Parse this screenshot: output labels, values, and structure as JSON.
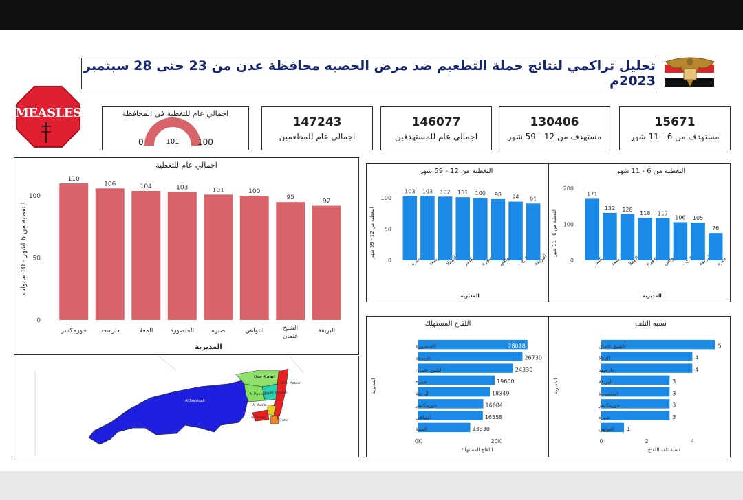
{
  "header": {
    "title": "تحليل تراكمي لنتائج حملة التطعيم ضد مرض الحصبه محافظة عدن من 23  حتى 28 سبتمبر 2023م",
    "logo_text": "MEASLES"
  },
  "kpis": [
    {
      "value": "15671",
      "label": "مستهدف من  6 - 11  شهر"
    },
    {
      "value": "130406",
      "label": "مستهدف من  12 - 59  شهر"
    },
    {
      "value": "146077",
      "label": "اجمالي عام للمستهدفين"
    },
    {
      "value": "147243",
      "label": "اجمالي عام للمطعمين"
    }
  ],
  "gauge": {
    "title": "اجمالي عام للتغطية في المحافظة",
    "min": "0",
    "max": "100",
    "value": "101",
    "fraction": 1.0
  },
  "colors": {
    "red_bar": "#d9636a",
    "blue_bar": "#1a8ae6",
    "sign_red": "#e02030",
    "map_blue": "#1f1fe0"
  },
  "chart_data": [
    {
      "id": "overall-coverage",
      "type": "bar",
      "title": "اجمالي عام للتغطية",
      "xlabel": "المديرية",
      "ylabel": "التغطية من 6 اشهر - 10 سنوات",
      "categories": [
        "خورمكسر",
        "دارسعد",
        "المعلا",
        "المنصورة",
        "صيره",
        "التواهي",
        "الشيخ عثمان",
        "البريقة"
      ],
      "values": [
        110,
        106,
        104,
        103,
        101,
        100,
        95,
        92
      ],
      "yticks": [
        "0",
        "50",
        "100"
      ],
      "ylim": [
        0,
        115
      ]
    },
    {
      "id": "coverage-12-59",
      "type": "bar",
      "title": "التغطية من 12 - 59 شهر",
      "xlabel": "المديرية",
      "ylabel": "التغطية من 12 - 59 شهر",
      "categories": [
        "صيره",
        "دارسعد",
        "المعلا",
        "خورمكسر",
        "المنصورة",
        "التواهي",
        "الشيخ ع...",
        "البريقة"
      ],
      "values": [
        103,
        103,
        102,
        101,
        100,
        98,
        94,
        91
      ],
      "yticks": [
        "0",
        "50",
        "100"
      ],
      "ylim": [
        0,
        110
      ]
    },
    {
      "id": "coverage-6-11",
      "type": "bar",
      "title": "التغطية من 6 - 11 شهر",
      "xlabel": "المديرية",
      "ylabel": "التغطية من 6 - 11 شهر",
      "categories": [
        "خورمكسر",
        "دارسعد",
        "المعلا",
        "المنصورة",
        "التواهي",
        "الشيخ ع...",
        "البريقة",
        "صيره"
      ],
      "values": [
        171,
        132,
        128,
        118,
        117,
        106,
        105,
        76
      ],
      "yticks": [
        "0",
        "100",
        "200"
      ],
      "ylim": [
        0,
        210
      ]
    },
    {
      "id": "vaccine-used",
      "type": "bar",
      "orientation": "horizontal",
      "title": "اللقاح المستهلك",
      "xlabel": "اللقاح المستهلك",
      "ylabel": "المديرية",
      "categories": [
        "المنصورة",
        "دارسعد",
        "الشيخ عثمان",
        "صيره",
        "البريقة",
        "خورمكسر",
        "التواهي",
        "المعلا"
      ],
      "values": [
        28018,
        26730,
        24330,
        19600,
        18349,
        16684,
        16558,
        13330
      ],
      "xticks": [
        "0K",
        "20K"
      ],
      "xlim": [
        0,
        30000
      ]
    },
    {
      "id": "wastage-rate",
      "type": "bar",
      "orientation": "horizontal",
      "title": "نسبه التلف",
      "xlabel": "نسبة تلف اللقاح",
      "ylabel": "المديرية",
      "categories": [
        "الشيخ عثمان",
        "المعلا",
        "دارسعد",
        "البريقة",
        "المنصورة",
        "خورمكسر",
        "صيره",
        "التواهي"
      ],
      "values": [
        5,
        4,
        4,
        3,
        3,
        3,
        3,
        1
      ],
      "xticks": [
        "0",
        "2",
        "4"
      ],
      "xlim": [
        0,
        5.5
      ]
    }
  ],
  "map": {
    "labels": [
      "Dar Saad",
      "Al Buraiqah",
      "Al Mansoora",
      "Shaikh Othman",
      "Khor Maksar",
      "Al Mualla",
      "Al Tawahi",
      "Crater"
    ]
  }
}
